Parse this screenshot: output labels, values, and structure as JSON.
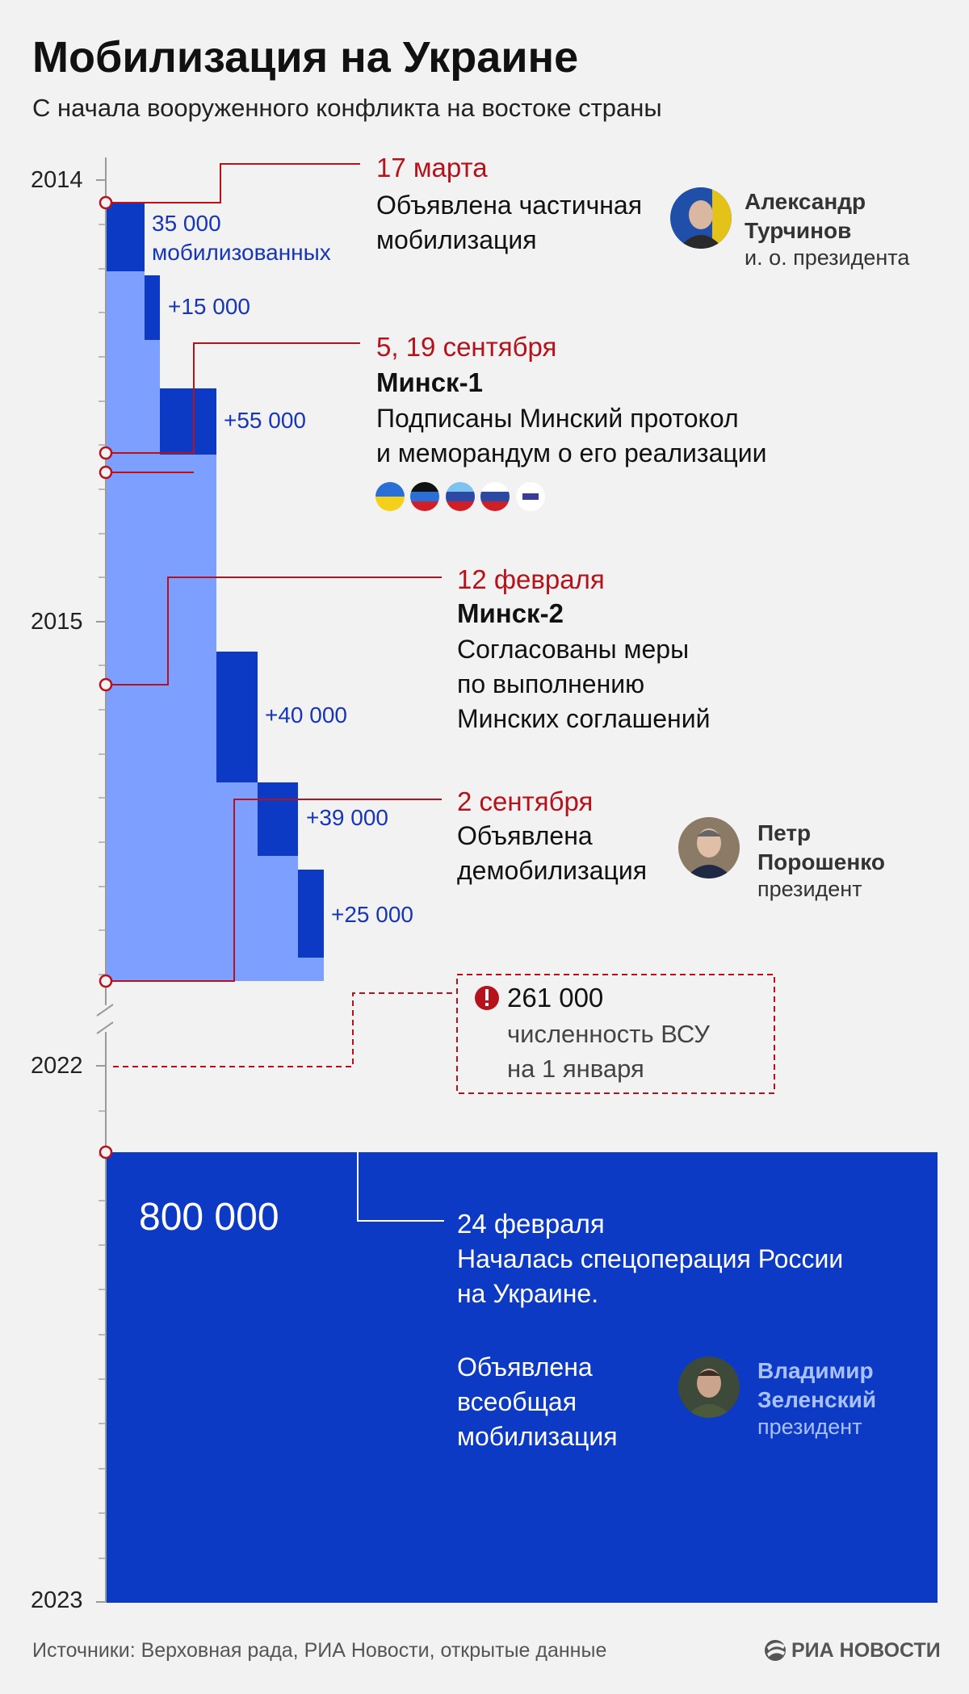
{
  "title": "Мобилизация на Украине",
  "subtitle": "С начала вооруженного конфликта на востоке страны",
  "chart_data": {
    "type": "bar",
    "title": "Мобилизация на Украине",
    "subtitle": "С начала вооруженного конфликта на востоке страны",
    "y_axis_years": [
      "2014",
      "2015",
      "2022",
      "2023"
    ],
    "waves": [
      {
        "label": "35 000",
        "label2": "мобилизованных",
        "value": 35000,
        "date": "17 марта 2014"
      },
      {
        "label": "+15 000",
        "value": 15000
      },
      {
        "label": "+55 000",
        "value": 55000
      },
      {
        "label": "+40 000",
        "value": 40000
      },
      {
        "label": "+39 000",
        "value": 39000
      },
      {
        "label": "+25 000",
        "value": 25000
      }
    ],
    "total_2014_2015": 209000,
    "afu_strength_2022": 261000,
    "mobilization_2022": 800000
  },
  "events": {
    "e1": {
      "date": "17 марта",
      "lines": [
        "Объявлена частичная",
        "мобилизация"
      ]
    },
    "e2": {
      "date": "5, 19 сентября",
      "head": "Минск-1",
      "lines": [
        "Подписаны Минский протокол",
        "и меморандум о его реализации"
      ]
    },
    "e3": {
      "date": "12 февраля",
      "head": "Минск-2",
      "lines": [
        "Согласованы меры",
        "по выполнению",
        "Минских соглашений"
      ]
    },
    "e4": {
      "date": "2 сентября",
      "lines": [
        "Объявлена",
        "демобилизация"
      ]
    },
    "e5": {
      "date": "24 февраля",
      "lines": [
        "Началась спецоперация России",
        "на Украине."
      ],
      "lines2": [
        "Объявлена",
        "всеобщая",
        "мобилизация"
      ]
    }
  },
  "persons": {
    "p1": {
      "name1": "Александр",
      "name2": "Турчинов",
      "role": "и. о. президента"
    },
    "p2": {
      "name1": "Петр",
      "name2": "Порошенко",
      "role": "президент"
    },
    "p3": {
      "name1": "Владимир",
      "name2": "Зеленский",
      "role": "президент"
    }
  },
  "afu": {
    "value": "261 000",
    "line1": "численность ВСУ",
    "line2": "на 1 января"
  },
  "big_value": "800 000",
  "source": "Источники: Верховная рада, РИА Новости, открытые данные",
  "logo": "РИА НОВОСТИ",
  "colors": {
    "dark_blue": "#0d3ac4",
    "light_blue": "#7d9fff",
    "big_block": "#0d3ac4",
    "accent_red": "#b5121b"
  }
}
